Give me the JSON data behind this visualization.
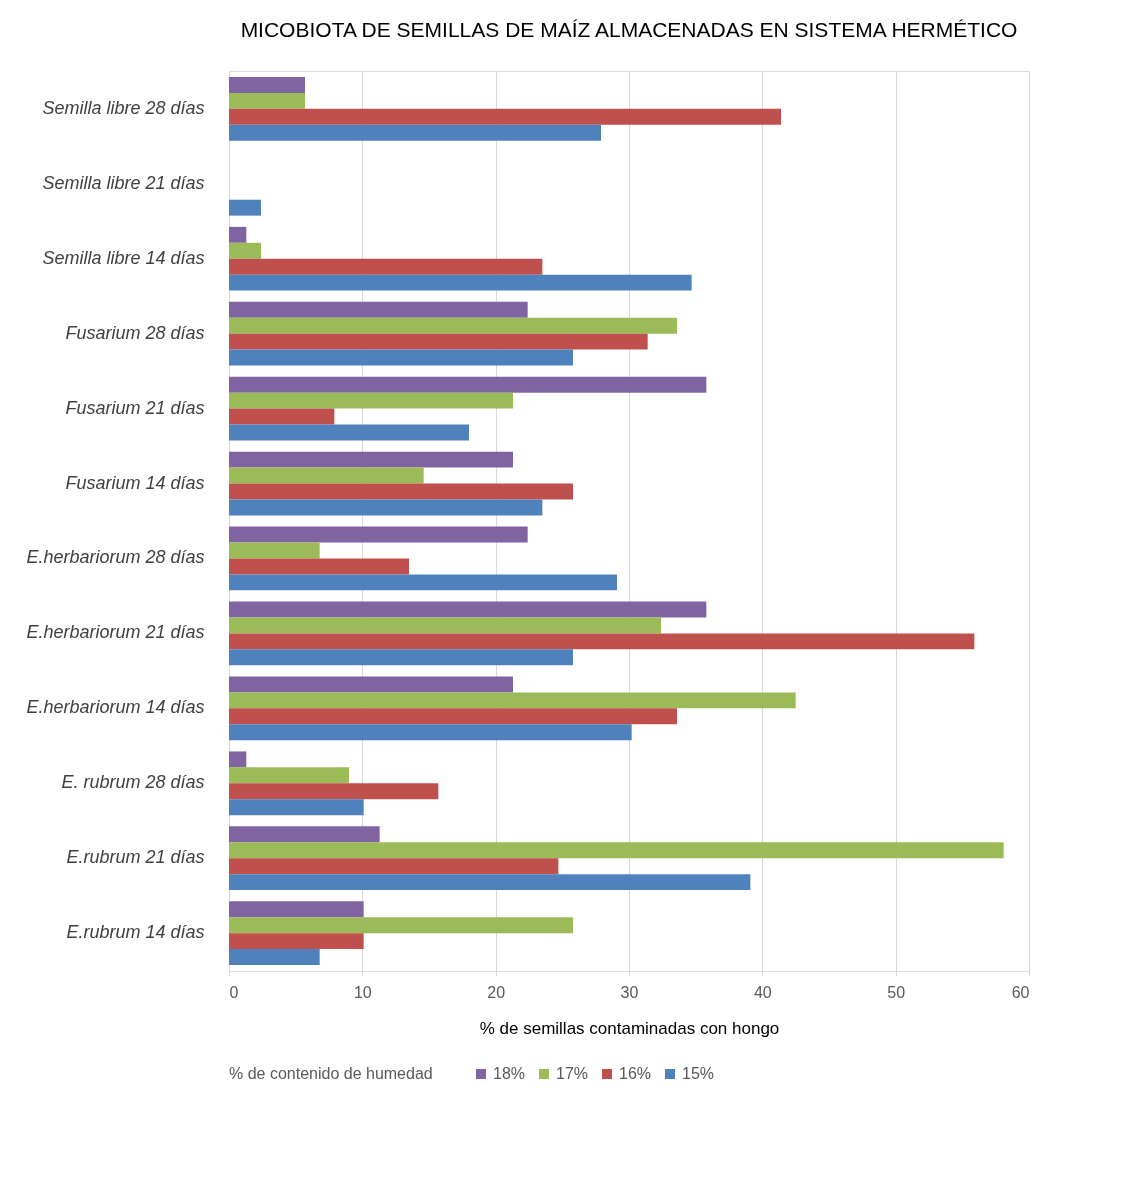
{
  "chart_data": {
    "type": "bar",
    "orientation": "horizontal",
    "title": "MICOBIOTA DE SEMILLAS DE MAÍZ ALMACENADAS EN SISTEMA HERMÉTICO",
    "xlabel": "% de semillas contaminadas con hongo",
    "legend_title": "% de contenido de humedad",
    "categories": [
      "Semilla libre 28 días",
      "Semilla libre 21 días",
      "Semilla libre 14 días",
      "Fusarium 28 días",
      "Fusarium 21 días",
      "Fusarium 14 días",
      "E.herbariorum  28 días",
      "E.herbariorum 21 días",
      "E.herbariorum  14 días",
      "E. rubrum 28 días",
      "E.rubrum 21 días",
      "E.rubrum 14 días"
    ],
    "series": [
      {
        "name": "18%",
        "color": "#8064a2",
        "values": [
          5.7,
          0,
          1.3,
          22.4,
          35.8,
          21.3,
          22.4,
          35.8,
          21.3,
          1.3,
          11.3,
          10.1
        ]
      },
      {
        "name": "17%",
        "color": "#9bbb59",
        "values": [
          5.7,
          0,
          2.4,
          33.6,
          21.3,
          14.6,
          6.8,
          32.4,
          42.5,
          9.0,
          58.1,
          25.8
        ]
      },
      {
        "name": "16%",
        "color": "#c0504d",
        "values": [
          41.4,
          0,
          23.5,
          31.4,
          7.9,
          25.8,
          13.5,
          55.9,
          33.6,
          15.7,
          24.7,
          10.1
        ]
      },
      {
        "name": "15%",
        "color": "#4f81bd",
        "values": [
          27.9,
          2.4,
          34.7,
          25.8,
          18.0,
          23.5,
          29.1,
          25.8,
          30.2,
          10.1,
          39.1,
          6.8
        ]
      }
    ],
    "xlim": [
      0,
      60
    ],
    "xticks": [
      0,
      10,
      20,
      30,
      40,
      50,
      60
    ],
    "grid": "x",
    "legend": "bottom"
  }
}
